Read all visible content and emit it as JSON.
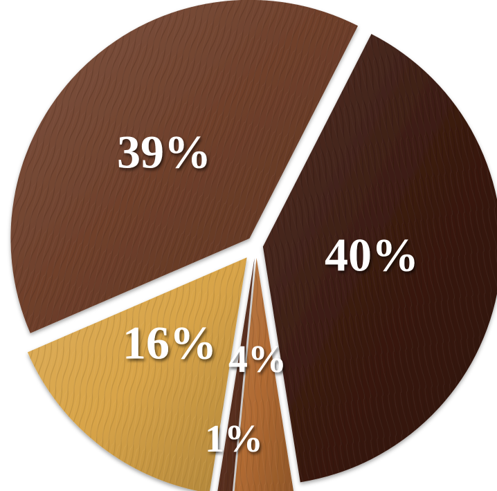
{
  "chart_data": {
    "type": "pie",
    "slices": [
      {
        "label": "40%",
        "value": 40,
        "color": "#3a1a10",
        "texture": "dark-walnut"
      },
      {
        "label": "4%",
        "value": 4,
        "color": "#b06a32",
        "texture": "oak"
      },
      {
        "label": "1%",
        "value": 1,
        "color": "#5a3020",
        "texture": "mahogany"
      },
      {
        "label": "16%",
        "value": 16,
        "color": "#d8a448",
        "texture": "light-maple"
      },
      {
        "label": "39%",
        "value": 39,
        "color": "#6e3f2a",
        "texture": "walnut"
      }
    ],
    "title": "",
    "legend": "none"
  }
}
